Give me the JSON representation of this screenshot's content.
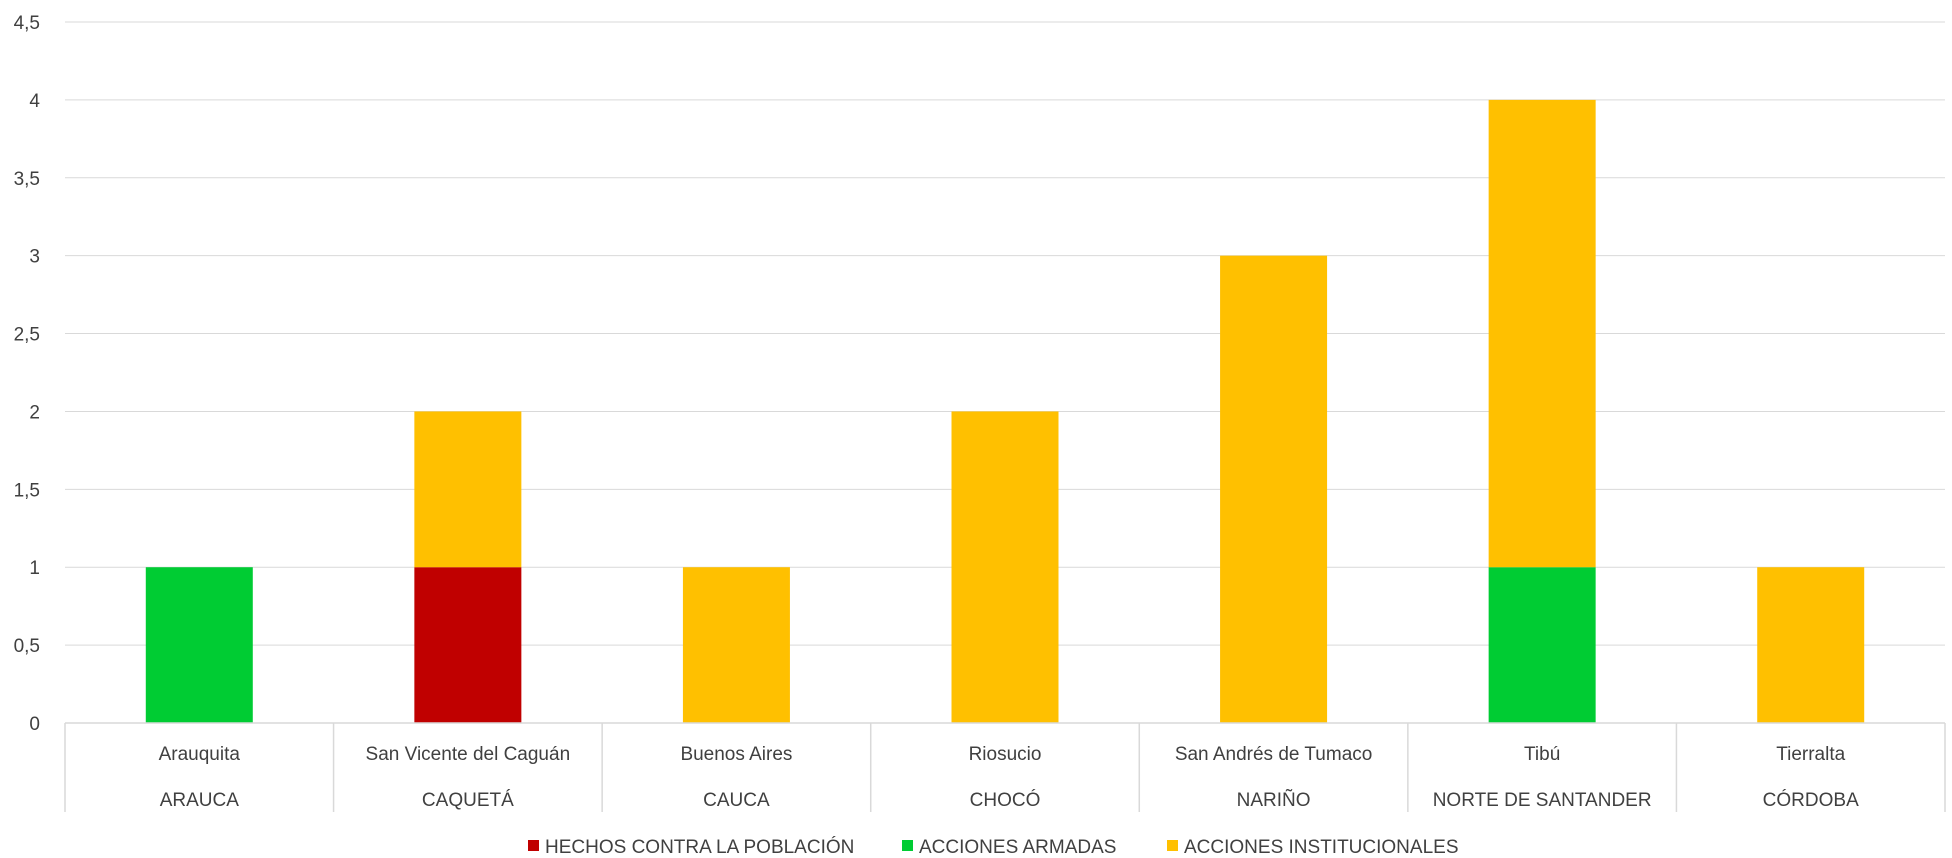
{
  "chart_data": {
    "type": "bar",
    "stacked": true,
    "categories": [
      {
        "municipality": "Arauquita",
        "department": "ARAUCA"
      },
      {
        "municipality": "San Vicente del Caguán",
        "department": "CAQUETÁ"
      },
      {
        "municipality": "Buenos Aires",
        "department": "CAUCA"
      },
      {
        "municipality": "Riosucio",
        "department": "CHOCÓ"
      },
      {
        "municipality": "San Andrés de Tumaco",
        "department": "NARIÑO"
      },
      {
        "municipality": "Tibú",
        "department": "NORTE DE SANTANDER"
      },
      {
        "municipality": "Tierralta",
        "department": "CÓRDOBA"
      }
    ],
    "series": [
      {
        "name": "HECHOS CONTRA LA POBLACIÓN",
        "color": "#c00000",
        "values": [
          0,
          1,
          0,
          0,
          0,
          0,
          0
        ]
      },
      {
        "name": "ACCIONES ARMADAS",
        "color": "#00cc33",
        "values": [
          1,
          0,
          0,
          0,
          0,
          1,
          0
        ]
      },
      {
        "name": "ACCIONES INSTITUCIONALES",
        "color": "#ffc000",
        "values": [
          0,
          1,
          1,
          2,
          3,
          3,
          1
        ]
      }
    ],
    "y_ticks": [
      "0",
      "0,5",
      "1",
      "1,5",
      "2",
      "2,5",
      "3",
      "3,5",
      "4",
      "4,5"
    ],
    "ylim": [
      0,
      4.5
    ],
    "grid": true,
    "legend_position": "bottom",
    "title": "",
    "xlabel": "",
    "ylabel": ""
  }
}
